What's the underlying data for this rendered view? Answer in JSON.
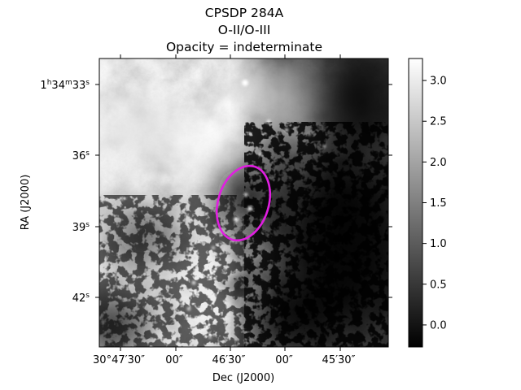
{
  "figure": {
    "title": [
      "CPSDP 284A",
      "O-II/O-III",
      "Opacity = indeterminate"
    ],
    "xlabel": "Dec (J2000)",
    "ylabel": "RA (J2000)",
    "x_ticks": [
      "30°47′30″",
      "00″",
      "46′30″",
      "00″",
      "45′30″"
    ],
    "y_ticks": [
      {
        "h": "1",
        "m": "34",
        "s": "33"
      },
      {
        "h": "",
        "m": "",
        "s": "36"
      },
      {
        "h": "",
        "m": "",
        "s": "39"
      },
      {
        "h": "",
        "m": "",
        "s": "42"
      }
    ],
    "colormap": "gray",
    "colorbar": {
      "ticks": [
        "0.0",
        "0.5",
        "1.0",
        "1.5",
        "2.0",
        "2.5",
        "3.0"
      ],
      "tick_values": [
        0.0,
        0.5,
        1.0,
        1.5,
        2.0,
        2.5,
        3.0
      ],
      "vmin": -0.27,
      "vmax": 3.27
    },
    "ellipse_color": "#e01ee0",
    "image": "grayscale nebula emission map"
  }
}
